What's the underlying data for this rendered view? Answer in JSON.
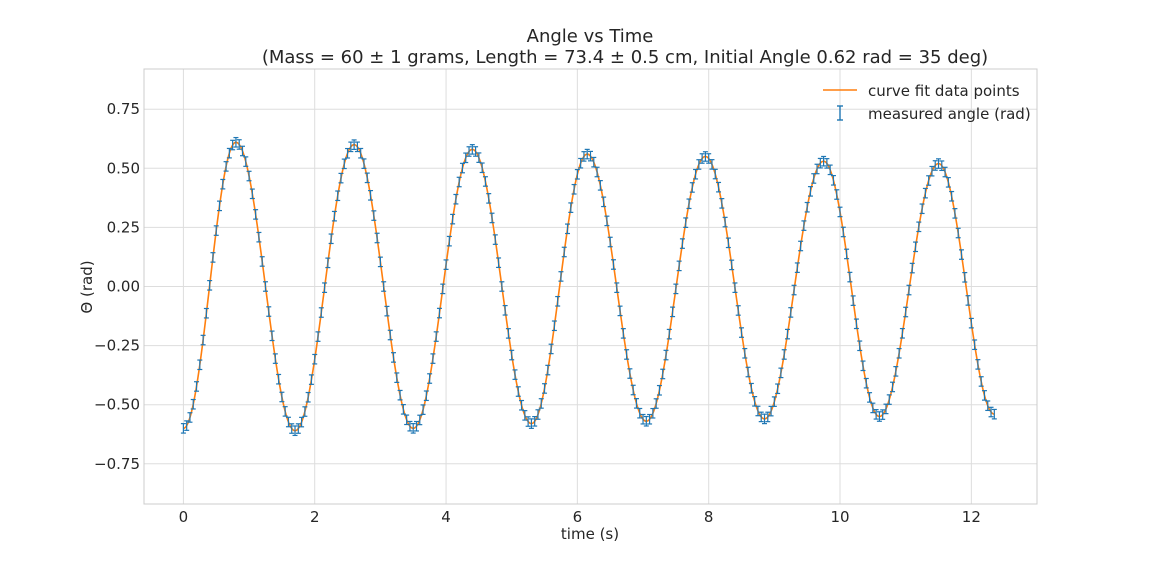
{
  "chart_data": {
    "type": "line",
    "title": "Angle vs Time",
    "subtitle": "(Mass = 60 ± 1 grams, Length = 73.4 ± 0.5 cm, Initial Angle 0.62 rad = 35 deg)",
    "xlabel": "time (s)",
    "ylabel": "Θ (rad)",
    "xlim": [
      -0.6,
      13.0
    ],
    "ylim": [
      -0.92,
      0.92
    ],
    "xticks": [
      0,
      2,
      4,
      6,
      8,
      10,
      12
    ],
    "xtick_labels": [
      "0",
      "2",
      "4",
      "6",
      "8",
      "10",
      "12"
    ],
    "yticks": [
      0.75,
      0.5,
      0.25,
      0.0,
      -0.25,
      -0.5,
      -0.75
    ],
    "ytick_labels": [
      "0.75",
      "0.50",
      "0.25",
      "0.00",
      "−0.25",
      "−0.50",
      "−0.75"
    ],
    "grid": true,
    "legend_position": "top-right",
    "colors": {
      "fit": "#ff7f0e",
      "measured": "#1f77b4"
    },
    "series": [
      {
        "name": "curve fit data points",
        "kind": "line",
        "x": [
          0,
          0.8,
          1.7,
          2.6,
          3.5,
          4.4,
          5.3,
          6.15,
          7.05,
          7.95,
          8.85,
          9.75,
          10.6,
          11.5,
          12.35
        ],
        "y": [
          -0.6,
          0.61,
          -0.61,
          0.6,
          -0.6,
          0.58,
          -0.58,
          0.56,
          -0.57,
          0.55,
          -0.56,
          0.53,
          -0.55,
          0.52,
          -0.54
        ]
      },
      {
        "name": "measured angle (rad)",
        "kind": "errorbar",
        "x": [
          0,
          0.8,
          1.7,
          2.6,
          3.5,
          4.4,
          5.3,
          6.15,
          7.05,
          7.95,
          8.85,
          9.75,
          10.6,
          11.5,
          12.35
        ],
        "y": [
          -0.6,
          0.61,
          -0.61,
          0.6,
          -0.6,
          0.58,
          -0.58,
          0.56,
          -0.57,
          0.55,
          -0.56,
          0.53,
          -0.55,
          0.52,
          -0.54
        ],
        "yerr": 0.02,
        "sample_interval": 0.05
      }
    ]
  }
}
